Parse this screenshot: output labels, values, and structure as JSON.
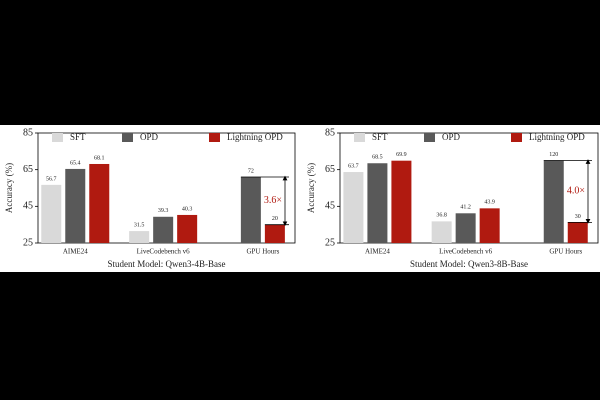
{
  "chart_data": [
    {
      "type": "bar",
      "xlabel": "Student Model: Qwen3-4B-Base",
      "ylabel": "Accuracy (%)",
      "categories": [
        "AIME24",
        "LiveCodebench v6"
      ],
      "ylim": [
        25,
        85
      ],
      "yticks": [
        25,
        45,
        65,
        85
      ],
      "series": [
        {
          "name": "SFT",
          "color": "#d9d9d9",
          "values": [
            56.7,
            31.5
          ]
        },
        {
          "name": "OPD",
          "color": "#595959",
          "values": [
            65.4,
            39.3
          ]
        },
        {
          "name": "Lightning OPD",
          "color": "#b01a10",
          "values": [
            68.1,
            40.3
          ]
        }
      ],
      "gpu_hours": {
        "category": "GPU Hours",
        "values": [
          72,
          20
        ],
        "y2lim": [
          0,
          120
        ],
        "annotation": "3.6×"
      }
    },
    {
      "type": "bar",
      "xlabel": "Student Model: Qwen3-8B-Base",
      "ylabel": "Accuracy (%)",
      "categories": [
        "AIME24",
        "LiveCodebench v6"
      ],
      "ylim": [
        25,
        85
      ],
      "yticks": [
        25,
        45,
        65,
        85
      ],
      "series": [
        {
          "name": "SFT",
          "color": "#d9d9d9",
          "values": [
            63.7,
            36.8
          ]
        },
        {
          "name": "OPD",
          "color": "#595959",
          "values": [
            68.5,
            41.2
          ]
        },
        {
          "name": "Lightning OPD",
          "color": "#b01a10",
          "values": [
            69.9,
            43.9
          ]
        }
      ],
      "gpu_hours": {
        "category": "GPU Hours",
        "values": [
          120,
          30
        ],
        "y2lim": [
          0,
          160
        ],
        "annotation": "4.0×"
      }
    }
  ]
}
